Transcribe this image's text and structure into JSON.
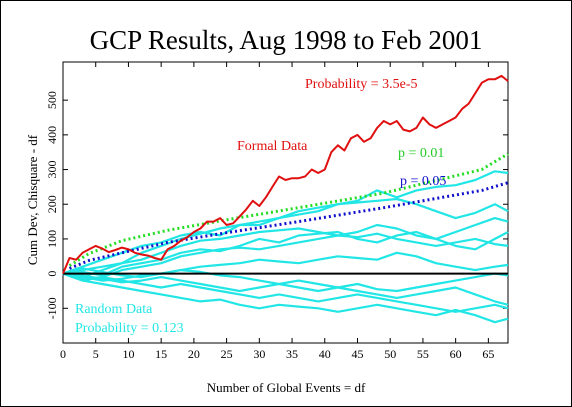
{
  "chart_data": {
    "type": "line",
    "title": "GCP Results, Aug 1998 to Feb 2001",
    "xlabel": "Number of Global Events = df",
    "ylabel": "Cum Dev, Chisquare - df",
    "xlim": [
      0,
      68
    ],
    "ylim": [
      -200,
      610
    ],
    "xticks": [
      0,
      5,
      10,
      15,
      20,
      25,
      30,
      35,
      40,
      45,
      50,
      55,
      60,
      65
    ],
    "yticks": [
      -100,
      0,
      100,
      200,
      300,
      400,
      500
    ],
    "grid": false,
    "zero_line": true,
    "annotations": {
      "probability_formal": "Probability = 3.5e-5",
      "formal_label": "Formal Data",
      "p001": "p = 0.01",
      "p005": "p = 0.05",
      "random_label": "Random Data",
      "random_probability": "Probability = 0.123"
    },
    "colors": {
      "formal": "#e01010",
      "p001": "#22dd22",
      "p005": "#1010cc",
      "random": "#22e6e6",
      "zero": "#000000"
    },
    "series": [
      {
        "role": "formal",
        "x": [
          0,
          1,
          2,
          3,
          4,
          5,
          6,
          7,
          8,
          9,
          10,
          11,
          12,
          13,
          14,
          15,
          16,
          17,
          18,
          19,
          20,
          21,
          22,
          23,
          24,
          25,
          26,
          27,
          28,
          29,
          30,
          31,
          32,
          33,
          34,
          35,
          36,
          37,
          38,
          39,
          40,
          41,
          42,
          43,
          44,
          45,
          46,
          47,
          48,
          49,
          50,
          51,
          52,
          53,
          54,
          55,
          56,
          57,
          58,
          59,
          60,
          61,
          62,
          63,
          64,
          65,
          66,
          67,
          68
        ],
        "values": [
          0,
          45,
          40,
          60,
          70,
          80,
          72,
          62,
          68,
          75,
          70,
          60,
          55,
          52,
          45,
          40,
          70,
          80,
          95,
          105,
          120,
          130,
          150,
          150,
          160,
          140,
          145,
          165,
          185,
          210,
          195,
          220,
          250,
          280,
          270,
          275,
          275,
          280,
          300,
          290,
          300,
          350,
          370,
          355,
          390,
          400,
          380,
          390,
          420,
          440,
          430,
          440,
          415,
          410,
          420,
          450,
          430,
          420,
          430,
          440,
          450,
          475,
          490,
          520,
          550,
          560,
          560,
          570,
          555
        ]
      },
      {
        "role": "p001",
        "x": [
          1,
          4,
          9,
          16,
          25,
          36,
          49,
          64,
          68
        ],
        "values": [
          23,
          58,
          95,
          125,
          155,
          190,
          232,
          300,
          345
        ]
      },
      {
        "role": "p005",
        "x": [
          1,
          4,
          9,
          16,
          25,
          36,
          49,
          64,
          68
        ],
        "values": [
          15,
          38,
          60,
          90,
          118,
          150,
          190,
          240,
          262
        ]
      },
      {
        "role": "random",
        "x": [
          0,
          3,
          6,
          9,
          12,
          15,
          18,
          21,
          24,
          27,
          30,
          33,
          36,
          39,
          42,
          45,
          48,
          51,
          54,
          57,
          60,
          63,
          66,
          68
        ],
        "values": [
          0,
          20,
          40,
          60,
          80,
          90,
          110,
          120,
          110,
          140,
          150,
          160,
          170,
          180,
          200,
          210,
          240,
          220,
          240,
          250,
          255,
          270,
          295,
          290
        ]
      },
      {
        "role": "random",
        "x": [
          0,
          3,
          6,
          9,
          12,
          15,
          18,
          21,
          24,
          27,
          30,
          33,
          36,
          39,
          42,
          45,
          48,
          51,
          54,
          57,
          60,
          63,
          66,
          68
        ],
        "values": [
          0,
          10,
          20,
          30,
          60,
          80,
          100,
          115,
          130,
          140,
          140,
          160,
          180,
          190,
          200,
          205,
          210,
          215,
          200,
          180,
          160,
          175,
          200,
          180
        ]
      },
      {
        "role": "random",
        "x": [
          0,
          3,
          6,
          9,
          12,
          15,
          18,
          21,
          24,
          27,
          30,
          33,
          36,
          39,
          42,
          45,
          48,
          51,
          54,
          57,
          60,
          63,
          66,
          68
        ],
        "values": [
          0,
          -10,
          10,
          30,
          40,
          60,
          80,
          95,
          100,
          110,
          120,
          125,
          130,
          120,
          110,
          120,
          140,
          130,
          110,
          100,
          120,
          140,
          160,
          150
        ]
      },
      {
        "role": "random",
        "x": [
          0,
          3,
          6,
          9,
          12,
          15,
          18,
          21,
          24,
          27,
          30,
          33,
          36,
          39,
          42,
          45,
          48,
          51,
          54,
          57,
          60,
          63,
          66,
          68
        ],
        "values": [
          0,
          5,
          -5,
          20,
          30,
          40,
          60,
          70,
          65,
          80,
          100,
          90,
          110,
          115,
          120,
          100,
          90,
          110,
          120,
          100,
          80,
          70,
          100,
          120
        ]
      },
      {
        "role": "random",
        "x": [
          0,
          3,
          6,
          9,
          12,
          15,
          18,
          21,
          24,
          27,
          30,
          33,
          36,
          39,
          42,
          45,
          48,
          51,
          54,
          57,
          60,
          63,
          66,
          68
        ],
        "values": [
          0,
          -20,
          -10,
          10,
          20,
          30,
          50,
          60,
          70,
          75,
          70,
          80,
          90,
          100,
          110,
          105,
          115,
          100,
          90,
          80,
          90,
          100,
          85,
          80
        ]
      },
      {
        "role": "random",
        "x": [
          0,
          3,
          6,
          9,
          12,
          15,
          18,
          21,
          24,
          27,
          30,
          33,
          36,
          39,
          42,
          45,
          48,
          51,
          54,
          57,
          60,
          63,
          66,
          68
        ],
        "values": [
          0,
          15,
          5,
          -5,
          -10,
          0,
          10,
          20,
          25,
          30,
          40,
          35,
          30,
          40,
          50,
          45,
          40,
          60,
          50,
          30,
          20,
          10,
          20,
          25
        ]
      },
      {
        "role": "random",
        "x": [
          0,
          3,
          6,
          9,
          12,
          15,
          18,
          21,
          24,
          27,
          30,
          33,
          36,
          39,
          42,
          45,
          48,
          51,
          54,
          57,
          60,
          63,
          66,
          68
        ],
        "values": [
          0,
          -10,
          -20,
          -15,
          -5,
          0,
          10,
          5,
          -5,
          -10,
          -20,
          -30,
          -40,
          -50,
          -40,
          -30,
          -45,
          -50,
          -40,
          -30,
          -20,
          -10,
          0,
          -5
        ]
      },
      {
        "role": "random",
        "x": [
          0,
          3,
          6,
          9,
          12,
          15,
          18,
          21,
          24,
          27,
          30,
          33,
          36,
          39,
          42,
          45,
          48,
          51,
          54,
          57,
          60,
          63,
          66,
          68
        ],
        "values": [
          0,
          -5,
          -15,
          -25,
          -20,
          -10,
          -20,
          -30,
          -40,
          -50,
          -40,
          -30,
          -20,
          -30,
          -40,
          -50,
          -60,
          -70,
          -60,
          -50,
          -40,
          -60,
          -80,
          -90
        ]
      },
      {
        "role": "random",
        "x": [
          0,
          3,
          6,
          9,
          12,
          15,
          18,
          21,
          24,
          27,
          30,
          33,
          36,
          39,
          42,
          45,
          48,
          51,
          54,
          57,
          60,
          63,
          66,
          68
        ],
        "values": [
          0,
          -15,
          -10,
          -20,
          -30,
          -40,
          -30,
          -40,
          -50,
          -60,
          -70,
          -60,
          -70,
          -80,
          -70,
          -60,
          -70,
          -80,
          -90,
          -100,
          -110,
          -100,
          -90,
          -100
        ]
      },
      {
        "role": "random",
        "x": [
          0,
          3,
          6,
          9,
          12,
          15,
          18,
          21,
          24,
          27,
          30,
          33,
          36,
          39,
          42,
          45,
          48,
          51,
          54,
          57,
          60,
          63,
          66,
          68
        ],
        "values": [
          0,
          -20,
          -30,
          -40,
          -50,
          -60,
          -70,
          -80,
          -75,
          -90,
          -100,
          -90,
          -95,
          -100,
          -110,
          -100,
          -90,
          -100,
          -110,
          -120,
          -105,
          -120,
          -140,
          -130
        ]
      }
    ]
  }
}
